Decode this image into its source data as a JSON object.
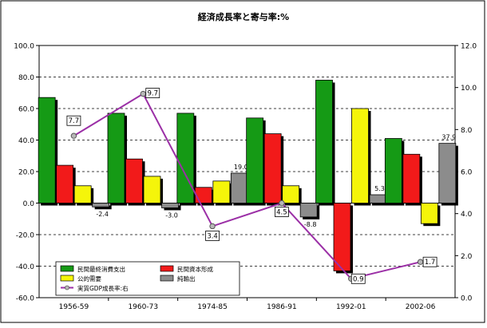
{
  "chart_data": {
    "type": "bar",
    "title": "経済成長率と寄与率:%",
    "categories": [
      "1956-59",
      "1960-73",
      "1974-85",
      "1986-91",
      "1992-01",
      "2002-06"
    ],
    "series": [
      {
        "name": "民間最終消費支出",
        "color": "#159a15",
        "values": [
          67,
          57,
          57,
          54,
          78,
          41
        ]
      },
      {
        "name": "民間資本形成",
        "color": "#f21a1a",
        "values": [
          24,
          28,
          10,
          44,
          -43,
          31
        ]
      },
      {
        "name": "公的需要",
        "color": "#f5f50a",
        "values": [
          11,
          17,
          14,
          11,
          60,
          -13
        ]
      },
      {
        "name": "純輸出",
        "color": "#8c8c8c",
        "values": [
          -2.4,
          -3.0,
          19.0,
          -8.8,
          5.3,
          37.9
        ]
      }
    ],
    "data_labels": {
      "純輸出": [
        "-2.4",
        "-3.0",
        "19.0",
        "-8.8",
        "5.3",
        "37.9"
      ]
    },
    "line_series": {
      "name": "実質GDP成長率:右",
      "color": "#9b2fa6",
      "values": [
        7.7,
        9.7,
        3.4,
        4.5,
        0.9,
        1.7
      ],
      "labels": [
        "7.7",
        "9.7",
        "3.4",
        "4.5",
        "0.9",
        "1.7"
      ]
    },
    "y_left": {
      "ylim": [
        -60,
        100
      ],
      "ticks": [
        "100.0",
        "80.0",
        "60.0",
        "40.0",
        "20.0",
        "0.0",
        "-20.0",
        "-40.0",
        "-60.0"
      ]
    },
    "y_right": {
      "ylim": [
        0,
        12
      ],
      "ticks": [
        "12.0",
        "10.0",
        "8.0",
        "6.0",
        "4.0",
        "2.0",
        "0.0"
      ]
    },
    "grid": "dashed-horizontal",
    "legend_position": "bottom-left"
  }
}
